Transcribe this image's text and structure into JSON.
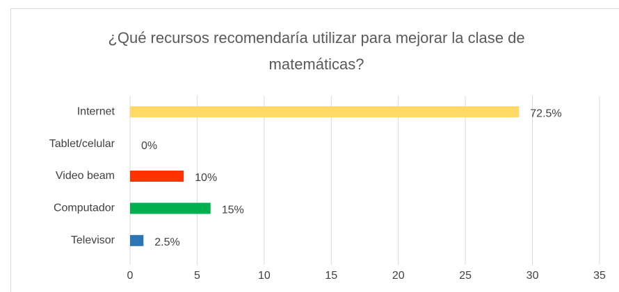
{
  "chart_data": {
    "type": "barh",
    "title": "¿Qué recursos recomendaría utilizar para mejorar la clase de matemáticas?",
    "categories": [
      "Internet",
      "Tablet/celular",
      "Video beam",
      "Computador",
      "Televisor"
    ],
    "values": [
      29,
      0,
      4,
      6,
      1
    ],
    "value_labels": [
      "72.5%",
      "0%",
      "10%",
      "15%",
      "2.5%"
    ],
    "colors": [
      "#ffd966",
      null,
      "#ff3300",
      "#00b050",
      "#2e75b6"
    ],
    "xlim": [
      0,
      35
    ],
    "xticks": [
      0,
      5,
      10,
      15,
      20,
      25,
      30,
      35
    ],
    "grid": true
  }
}
